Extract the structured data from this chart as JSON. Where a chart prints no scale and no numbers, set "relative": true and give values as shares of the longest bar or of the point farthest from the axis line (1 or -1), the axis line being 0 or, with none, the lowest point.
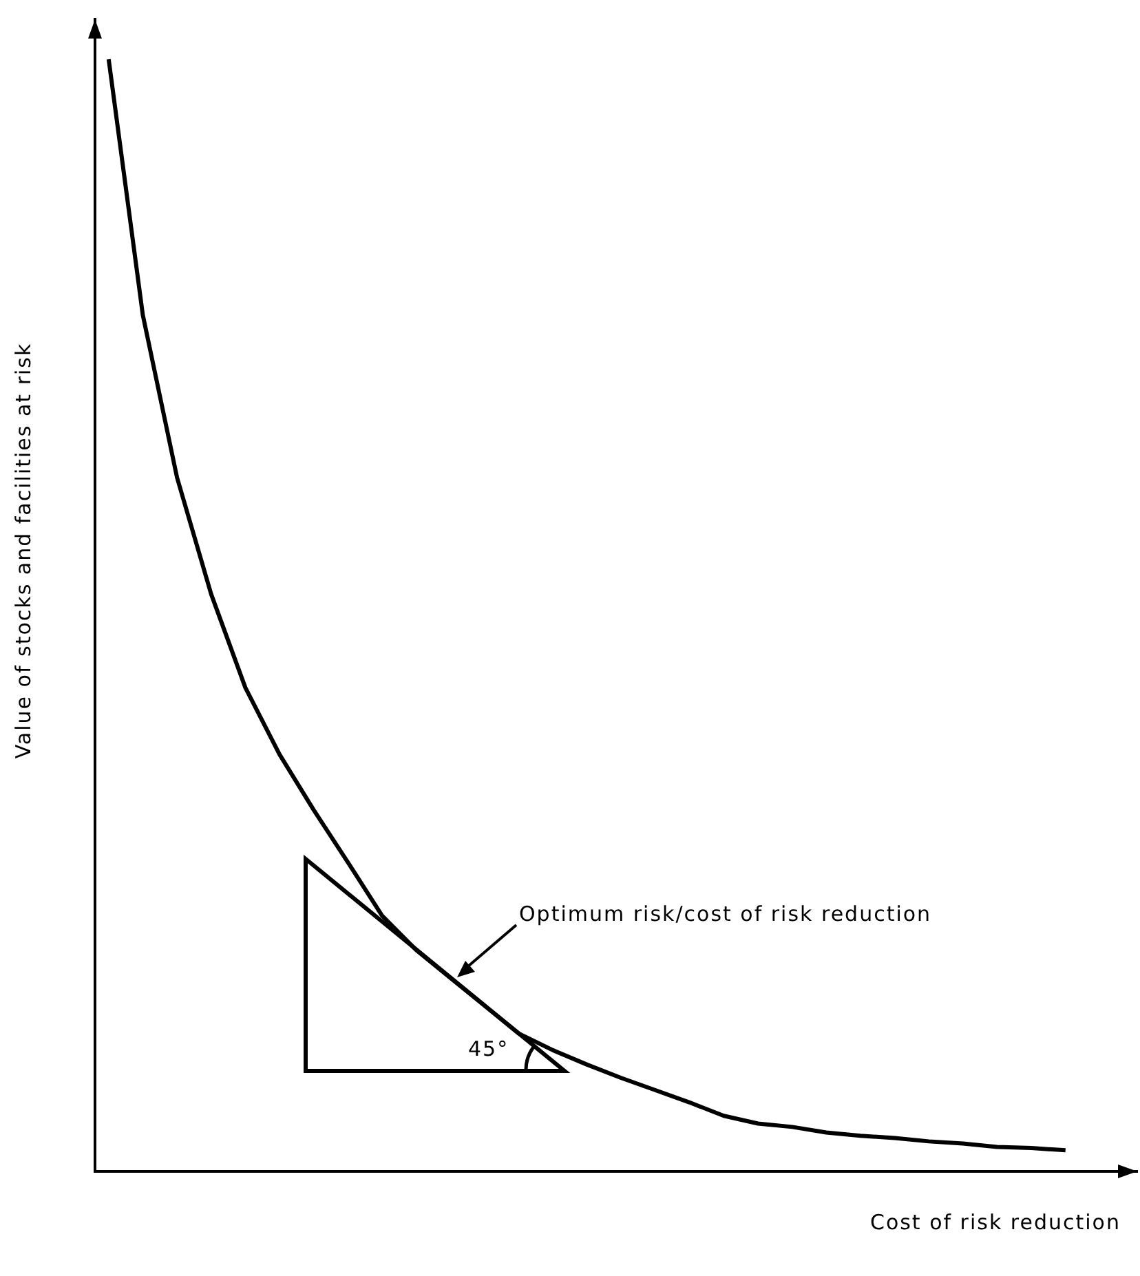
{
  "chart_data": {
    "type": "line",
    "relative": true,
    "xlabel": "Cost of risk reduction",
    "ylabel": "Value of stocks and facilities at risk",
    "color": "#000000",
    "marker": "none",
    "line_style": "solid",
    "grid": false,
    "legend": false,
    "categories": [
      null,
      null,
      null,
      null,
      null,
      null,
      null,
      null,
      null,
      null,
      null,
      null,
      null,
      null,
      null,
      null,
      null,
      null,
      null,
      null,
      null,
      null,
      null,
      null,
      null,
      null,
      null,
      null,
      null
    ],
    "values": [
      1,
      0.77,
      0.624,
      0.519,
      0.435,
      0.375,
      0.325,
      0.278,
      0.23,
      0.199,
      0.174,
      0.149,
      0.124,
      0.109,
      0.096,
      0.084,
      0.073,
      0.062,
      0.05,
      0.043,
      0.04,
      0.035,
      0.032,
      0.03,
      0.027,
      0.025,
      0.022,
      0.021,
      0.019
    ],
    "annotations": [
      "Optimum risk/cost of risk reduction",
      "45°"
    ]
  }
}
